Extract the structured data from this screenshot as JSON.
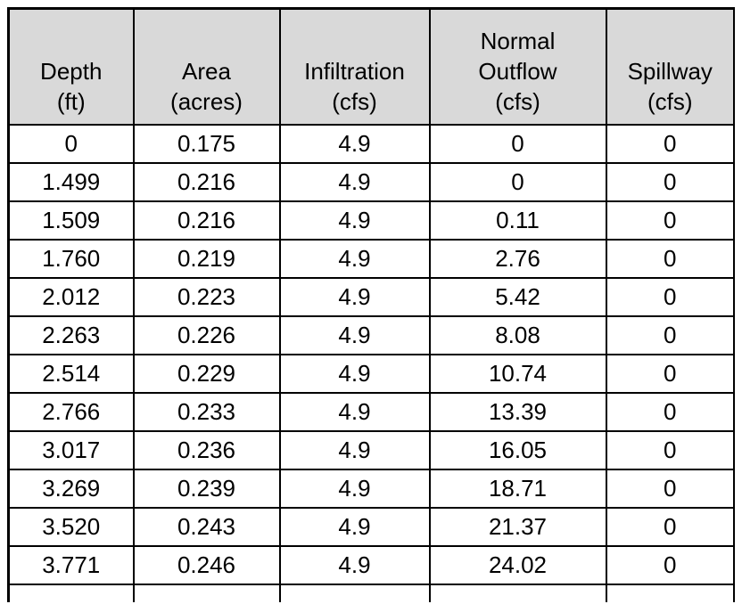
{
  "page": {
    "background_color": "#ffffff",
    "text_color": "#000000"
  },
  "table": {
    "name": "stage-area-discharge-table",
    "header_background": "#d9d9d9",
    "border_color": "#000000",
    "columns": [
      {
        "name": "depth",
        "lines": [
          "Depth",
          "(ft)"
        ]
      },
      {
        "name": "area",
        "lines": [
          "Area",
          "(acres)"
        ]
      },
      {
        "name": "infiltration",
        "lines": [
          "Infiltration",
          "(cfs)"
        ]
      },
      {
        "name": "normal-outflow",
        "lines": [
          "Normal",
          "Outflow",
          "(cfs)"
        ]
      },
      {
        "name": "spillway",
        "lines": [
          "Spillway",
          "(cfs)"
        ]
      }
    ],
    "rows": [
      [
        "0",
        "0.175",
        "4.9",
        "0",
        "0"
      ],
      [
        "1.499",
        "0.216",
        "4.9",
        "0",
        "0"
      ],
      [
        "1.509",
        "0.216",
        "4.9",
        "0.11",
        "0"
      ],
      [
        "1.760",
        "0.219",
        "4.9",
        "2.76",
        "0"
      ],
      [
        "2.012",
        "0.223",
        "4.9",
        "5.42",
        "0"
      ],
      [
        "2.263",
        "0.226",
        "4.9",
        "8.08",
        "0"
      ],
      [
        "2.514",
        "0.229",
        "4.9",
        "10.74",
        "0"
      ],
      [
        "2.766",
        "0.233",
        "4.9",
        "13.39",
        "0"
      ],
      [
        "3.017",
        "0.236",
        "4.9",
        "16.05",
        "0"
      ],
      [
        "3.269",
        "0.239",
        "4.9",
        "18.71",
        "0"
      ],
      [
        "3.520",
        "0.243",
        "4.9",
        "21.37",
        "0"
      ],
      [
        "3.771",
        "0.246",
        "4.9",
        "24.02",
        "0"
      ]
    ],
    "partial_row_visible": true
  }
}
